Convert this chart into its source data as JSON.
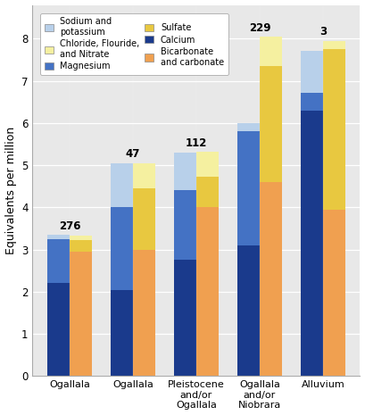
{
  "categories": [
    "Ogallala",
    "Ogallala",
    "Pleistocene\nand/or\nOgallala",
    "Ogallala\nand/or\nNiobrara",
    "Alluvium"
  ],
  "well_numbers": [
    "276",
    "47",
    "112",
    "229",
    "3"
  ],
  "ylim": [
    0,
    8.8
  ],
  "yticks": [
    0,
    1,
    2,
    3,
    4,
    5,
    6,
    7,
    8
  ],
  "ylabel": "Equivalents per million",
  "left_series": [
    "Calcium",
    "Magnesium",
    "Sodium and\npotassium"
  ],
  "right_series": [
    "Bicarbonate\nand carbonate",
    "Sulfate",
    "Chloride, Flouride,\nand Nitrate"
  ],
  "series": {
    "Calcium": {
      "values": [
        2.2,
        2.05,
        2.75,
        3.1,
        6.3
      ],
      "color": "#1a3a8c"
    },
    "Magnesium": {
      "values": [
        1.05,
        1.95,
        1.65,
        2.7,
        0.42
      ],
      "color": "#4472c4"
    },
    "Sodium and\npotassium": {
      "values": [
        0.1,
        1.05,
        0.9,
        0.2,
        1.0
      ],
      "color": "#b8d0ea"
    },
    "Bicarbonate\nand carbonate": {
      "values": [
        2.95,
        3.0,
        4.0,
        4.6,
        3.95
      ],
      "color": "#f0a050"
    },
    "Sulfate": {
      "values": [
        0.28,
        1.45,
        0.72,
        2.75,
        3.8
      ],
      "color": "#e8c840"
    },
    "Chloride, Flouride,\nand Nitrate": {
      "values": [
        0.1,
        0.6,
        0.6,
        0.7,
        0.2
      ],
      "color": "#f5f0a0"
    }
  },
  "legend_order_left": [
    "Sodium and\npotassium",
    "Magnesium",
    "Calcium"
  ],
  "legend_order_right": [
    "Chloride, Flouride,\nand Nitrate",
    "Sulfate",
    "Bicarbonate\nand carbonate"
  ],
  "bar_width": 0.35,
  "background_color": "#ffffff",
  "plot_background": "#e8e8e8",
  "axis_fontsize": 9,
  "tick_fontsize": 8.5,
  "annot_fontsize": 8.5
}
